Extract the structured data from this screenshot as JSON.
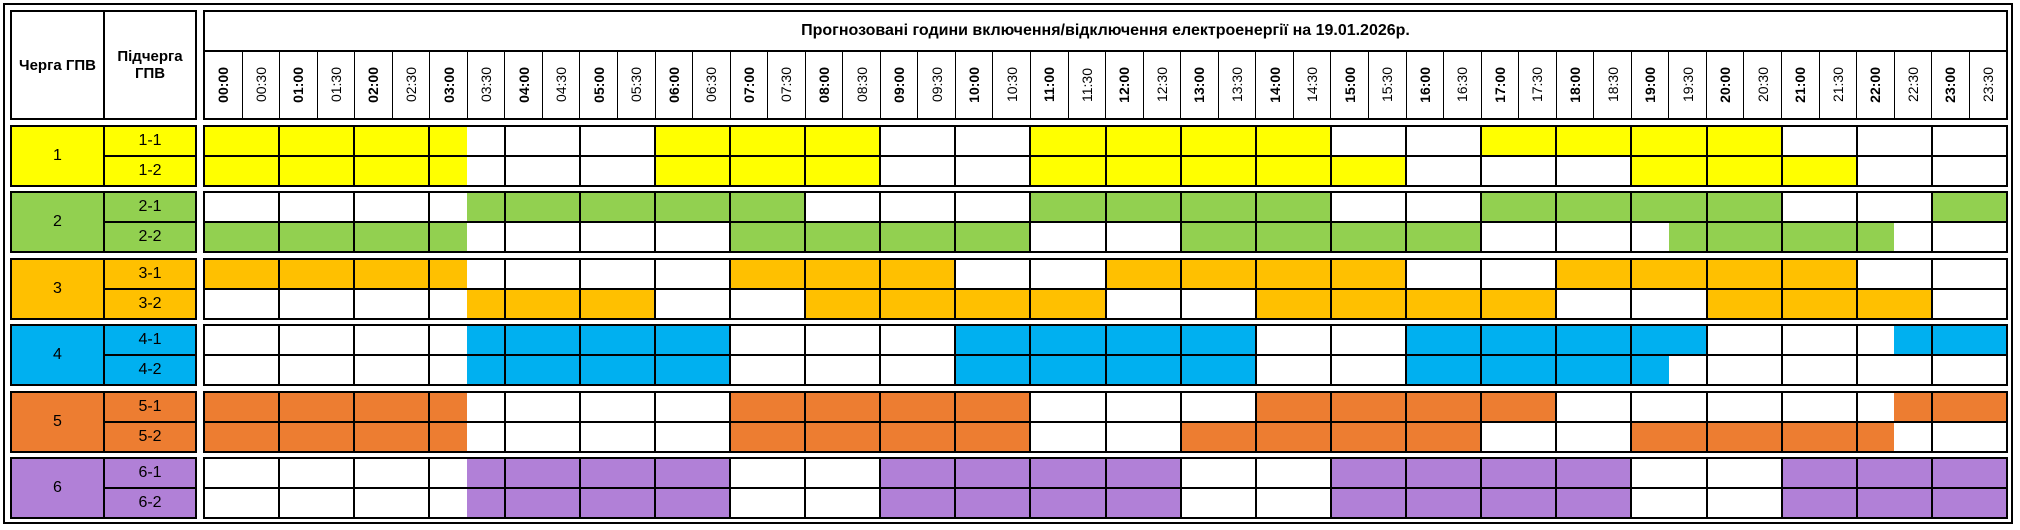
{
  "header": {
    "queue_label": "Черга ГПВ",
    "subqueue_label": "Підчерга ГПВ",
    "title": "Прогнозовані години включення/відключення електроенергії на 19.01.2026р."
  },
  "times": [
    "00:00",
    "00:30",
    "01:00",
    "01:30",
    "02:00",
    "02:30",
    "03:00",
    "03:30",
    "04:00",
    "04:30",
    "05:00",
    "05:30",
    "06:00",
    "06:30",
    "07:00",
    "07:30",
    "08:00",
    "08:30",
    "09:00",
    "09:30",
    "10:00",
    "10:30",
    "11:00",
    "11:30",
    "12:00",
    "12:30",
    "13:00",
    "13:30",
    "14:00",
    "14:30",
    "15:00",
    "15:30",
    "16:00",
    "16:30",
    "17:00",
    "17:30",
    "18:00",
    "18:30",
    "19:00",
    "19:30",
    "20:00",
    "20:30",
    "21:00",
    "21:30",
    "22:00",
    "22:30",
    "23:00",
    "23:30"
  ],
  "groups": [
    {
      "label": "1",
      "color": "#FFFF00",
      "subgroups": [
        {
          "label": "1-1",
          "outages": [
            "00:00-03:30",
            "06:00-09:00",
            "11:00-15:00",
            "17:00-21:00"
          ]
        },
        {
          "label": "1-2",
          "outages": [
            "00:00-03:30",
            "06:00-09:00",
            "11:00-16:00",
            "19:00-22:00"
          ]
        }
      ]
    },
    {
      "label": "2",
      "color": "#92D050",
      "subgroups": [
        {
          "label": "2-1",
          "outages": [
            "03:30-08:00",
            "11:00-15:00",
            "17:00-21:00",
            "23:00-24:00"
          ]
        },
        {
          "label": "2-2",
          "outages": [
            "00:00-03:30",
            "07:00-11:00",
            "13:00-17:00",
            "19:30-22:30"
          ]
        }
      ]
    },
    {
      "label": "3",
      "color": "#FFC000",
      "subgroups": [
        {
          "label": "3-1",
          "outages": [
            "00:00-03:30",
            "07:00-10:00",
            "12:00-16:00",
            "18:00-22:00"
          ]
        },
        {
          "label": "3-2",
          "outages": [
            "03:30-06:00",
            "08:00-12:00",
            "14:00-18:00",
            "20:00-23:00"
          ]
        }
      ]
    },
    {
      "label": "4",
      "color": "#00B0F0",
      "subgroups": [
        {
          "label": "4-1",
          "outages": [
            "03:30-07:00",
            "10:00-14:00",
            "16:00-20:00",
            "22:30-24:00"
          ]
        },
        {
          "label": "4-2",
          "outages": [
            "03:30-07:00",
            "10:00-14:00",
            "16:00-19:30"
          ]
        }
      ]
    },
    {
      "label": "5",
      "color": "#ED7D31",
      "subgroups": [
        {
          "label": "5-1",
          "outages": [
            "00:00-03:30",
            "07:00-11:00",
            "14:00-18:00",
            "22:30-24:00"
          ]
        },
        {
          "label": "5-2",
          "outages": [
            "00:00-03:30",
            "07:00-11:00",
            "13:00-17:00",
            "19:00-22:30"
          ]
        }
      ]
    },
    {
      "label": "6",
      "color": "#B180D7",
      "subgroups": [
        {
          "label": "6-1",
          "outages": [
            "03:30-07:00",
            "09:00-13:00",
            "15:00-19:00",
            "21:00-24:00"
          ]
        },
        {
          "label": "6-2",
          "outages": [
            "03:30-07:00",
            "09:00-13:00",
            "15:00-19:00",
            "21:00-24:00"
          ]
        }
      ]
    }
  ]
}
